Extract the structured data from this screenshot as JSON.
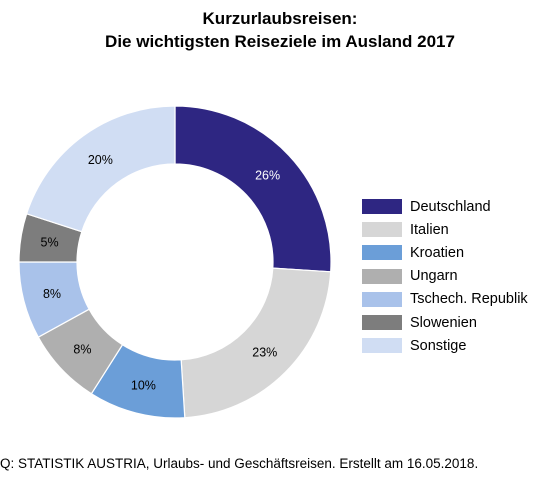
{
  "chart_data": {
    "type": "pie",
    "title": "Kurzurlaubsreisen:",
    "subtitle": "Die wichtigsten Reiseziele im Ausland 2017",
    "categories": [
      "Deutschland",
      "Italien",
      "Kroatien",
      "Ungarn",
      "Tschech. Republik",
      "Slowenien",
      "Sonstige"
    ],
    "values": [
      26,
      23,
      10,
      8,
      8,
      5,
      20
    ],
    "labels": [
      "26%",
      "23%",
      "10%",
      "8%",
      "8%",
      "5%",
      "20%"
    ],
    "unit": "%",
    "donut": true,
    "legend": "right",
    "colors": [
      "#2e2682",
      "#d6d6d6",
      "#6b9ed8",
      "#afafaf",
      "#a9c2ea",
      "#7d7d7d",
      "#d0ddf3"
    ]
  },
  "source": "Q: STATISTIK AUSTRIA, Urlaubs- und Geschäftsreisen. Erstellt am 16.05.2018."
}
